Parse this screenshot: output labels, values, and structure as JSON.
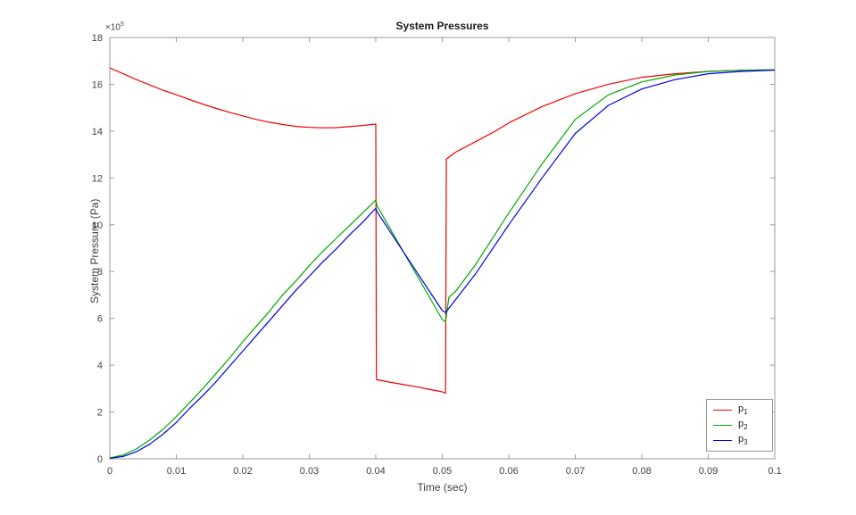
{
  "figure": {
    "title": "System Pressures",
    "xlabel": "Time (sec)",
    "ylabel": "System Pressure (Pa)",
    "y_multiplier_base": "×10",
    "y_multiplier_exp": "5"
  },
  "chart_data": {
    "type": "line",
    "title": "System Pressures",
    "xlabel": "Time (sec)",
    "ylabel": "System Pressure (Pa)",
    "y_unit": "×10^5 Pa",
    "grid": false,
    "legend_position": "inside-bottom-right",
    "xlim": [
      0,
      0.1
    ],
    "ylim": [
      0,
      18
    ],
    "xticks": [
      0,
      0.01,
      0.02,
      0.03,
      0.04,
      0.05,
      0.06,
      0.07,
      0.08,
      0.09,
      0.1
    ],
    "xtick_labels": [
      "0",
      "0.01",
      "0.02",
      "0.03",
      "0.04",
      "0.05",
      "0.06",
      "0.07",
      "0.08",
      "0.09",
      "0.1"
    ],
    "yticks": [
      0,
      2,
      4,
      6,
      8,
      10,
      12,
      14,
      16,
      18
    ],
    "ytick_labels": [
      "0",
      "2",
      "4",
      "6",
      "8",
      "10",
      "12",
      "14",
      "16",
      "18"
    ],
    "colors": {
      "axis": "#999999",
      "tick_label": "#404040",
      "title": "#1a1a1a",
      "legend_border": "#999999"
    },
    "series": [
      {
        "name": "p1",
        "legend": {
          "base": "p",
          "sub": "1"
        },
        "color": "#f00000",
        "points": [
          [
            0,
            16.7
          ],
          [
            0.002,
            16.45
          ],
          [
            0.004,
            16.2
          ],
          [
            0.006,
            15.97
          ],
          [
            0.008,
            15.75
          ],
          [
            0.01,
            15.55
          ],
          [
            0.012,
            15.35
          ],
          [
            0.014,
            15.15
          ],
          [
            0.016,
            14.97
          ],
          [
            0.018,
            14.8
          ],
          [
            0.02,
            14.65
          ],
          [
            0.022,
            14.5
          ],
          [
            0.024,
            14.38
          ],
          [
            0.026,
            14.28
          ],
          [
            0.028,
            14.2
          ],
          [
            0.03,
            14.16
          ],
          [
            0.032,
            14.14
          ],
          [
            0.034,
            14.15
          ],
          [
            0.036,
            14.19
          ],
          [
            0.038,
            14.24
          ],
          [
            0.04,
            14.3
          ],
          [
            0.0401,
            3.38
          ],
          [
            0.042,
            3.28
          ],
          [
            0.044,
            3.18
          ],
          [
            0.046,
            3.08
          ],
          [
            0.048,
            2.97
          ],
          [
            0.05,
            2.86
          ],
          [
            0.0505,
            2.8
          ],
          [
            0.0506,
            12.8
          ],
          [
            0.052,
            13.1
          ],
          [
            0.055,
            13.55
          ],
          [
            0.058,
            14.0
          ],
          [
            0.06,
            14.35
          ],
          [
            0.065,
            15.05
          ],
          [
            0.07,
            15.6
          ],
          [
            0.075,
            16.0
          ],
          [
            0.08,
            16.3
          ],
          [
            0.085,
            16.45
          ],
          [
            0.09,
            16.55
          ],
          [
            0.095,
            16.6
          ],
          [
            0.1,
            16.62
          ]
        ]
      },
      {
        "name": "p2",
        "legend": {
          "base": "p",
          "sub": "2"
        },
        "color": "#00a800",
        "points": [
          [
            0,
            0.04
          ],
          [
            0.002,
            0.16
          ],
          [
            0.004,
            0.42
          ],
          [
            0.006,
            0.8
          ],
          [
            0.008,
            1.26
          ],
          [
            0.01,
            1.8
          ],
          [
            0.012,
            2.4
          ],
          [
            0.014,
            3.0
          ],
          [
            0.016,
            3.65
          ],
          [
            0.018,
            4.3
          ],
          [
            0.02,
            5.0
          ],
          [
            0.022,
            5.65
          ],
          [
            0.024,
            6.3
          ],
          [
            0.026,
            7.0
          ],
          [
            0.028,
            7.6
          ],
          [
            0.03,
            8.25
          ],
          [
            0.032,
            8.85
          ],
          [
            0.034,
            9.4
          ],
          [
            0.036,
            9.95
          ],
          [
            0.038,
            10.5
          ],
          [
            0.04,
            11.05
          ],
          [
            0.0402,
            10.8
          ],
          [
            0.042,
            9.91
          ],
          [
            0.044,
            8.92
          ],
          [
            0.046,
            7.93
          ],
          [
            0.048,
            6.94
          ],
          [
            0.05,
            5.95
          ],
          [
            0.0505,
            5.85
          ],
          [
            0.051,
            6.9
          ],
          [
            0.052,
            7.15
          ],
          [
            0.055,
            8.3
          ],
          [
            0.06,
            10.5
          ],
          [
            0.065,
            12.6
          ],
          [
            0.07,
            14.5
          ],
          [
            0.075,
            15.55
          ],
          [
            0.08,
            16.1
          ],
          [
            0.085,
            16.4
          ],
          [
            0.09,
            16.55
          ],
          [
            0.095,
            16.6
          ],
          [
            0.1,
            16.62
          ]
        ]
      },
      {
        "name": "p3",
        "legend": {
          "base": "p",
          "sub": "3"
        },
        "color": "#0000e0",
        "points": [
          [
            0,
            0.02
          ],
          [
            0.002,
            0.1
          ],
          [
            0.004,
            0.3
          ],
          [
            0.006,
            0.62
          ],
          [
            0.008,
            1.05
          ],
          [
            0.01,
            1.55
          ],
          [
            0.012,
            2.15
          ],
          [
            0.014,
            2.7
          ],
          [
            0.016,
            3.3
          ],
          [
            0.018,
            3.95
          ],
          [
            0.02,
            4.6
          ],
          [
            0.022,
            5.25
          ],
          [
            0.024,
            5.9
          ],
          [
            0.026,
            6.55
          ],
          [
            0.028,
            7.2
          ],
          [
            0.03,
            7.8
          ],
          [
            0.032,
            8.4
          ],
          [
            0.034,
            8.95
          ],
          [
            0.036,
            9.55
          ],
          [
            0.038,
            10.1
          ],
          [
            0.04,
            10.7
          ],
          [
            0.0402,
            10.55
          ],
          [
            0.042,
            9.77
          ],
          [
            0.044,
            8.91
          ],
          [
            0.046,
            8.05
          ],
          [
            0.048,
            7.19
          ],
          [
            0.05,
            6.33
          ],
          [
            0.0505,
            6.25
          ],
          [
            0.052,
            6.8
          ],
          [
            0.055,
            7.9
          ],
          [
            0.06,
            10.0
          ],
          [
            0.065,
            12.0
          ],
          [
            0.07,
            13.9
          ],
          [
            0.075,
            15.1
          ],
          [
            0.08,
            15.8
          ],
          [
            0.085,
            16.2
          ],
          [
            0.09,
            16.45
          ],
          [
            0.095,
            16.55
          ],
          [
            0.1,
            16.6
          ]
        ]
      }
    ]
  }
}
